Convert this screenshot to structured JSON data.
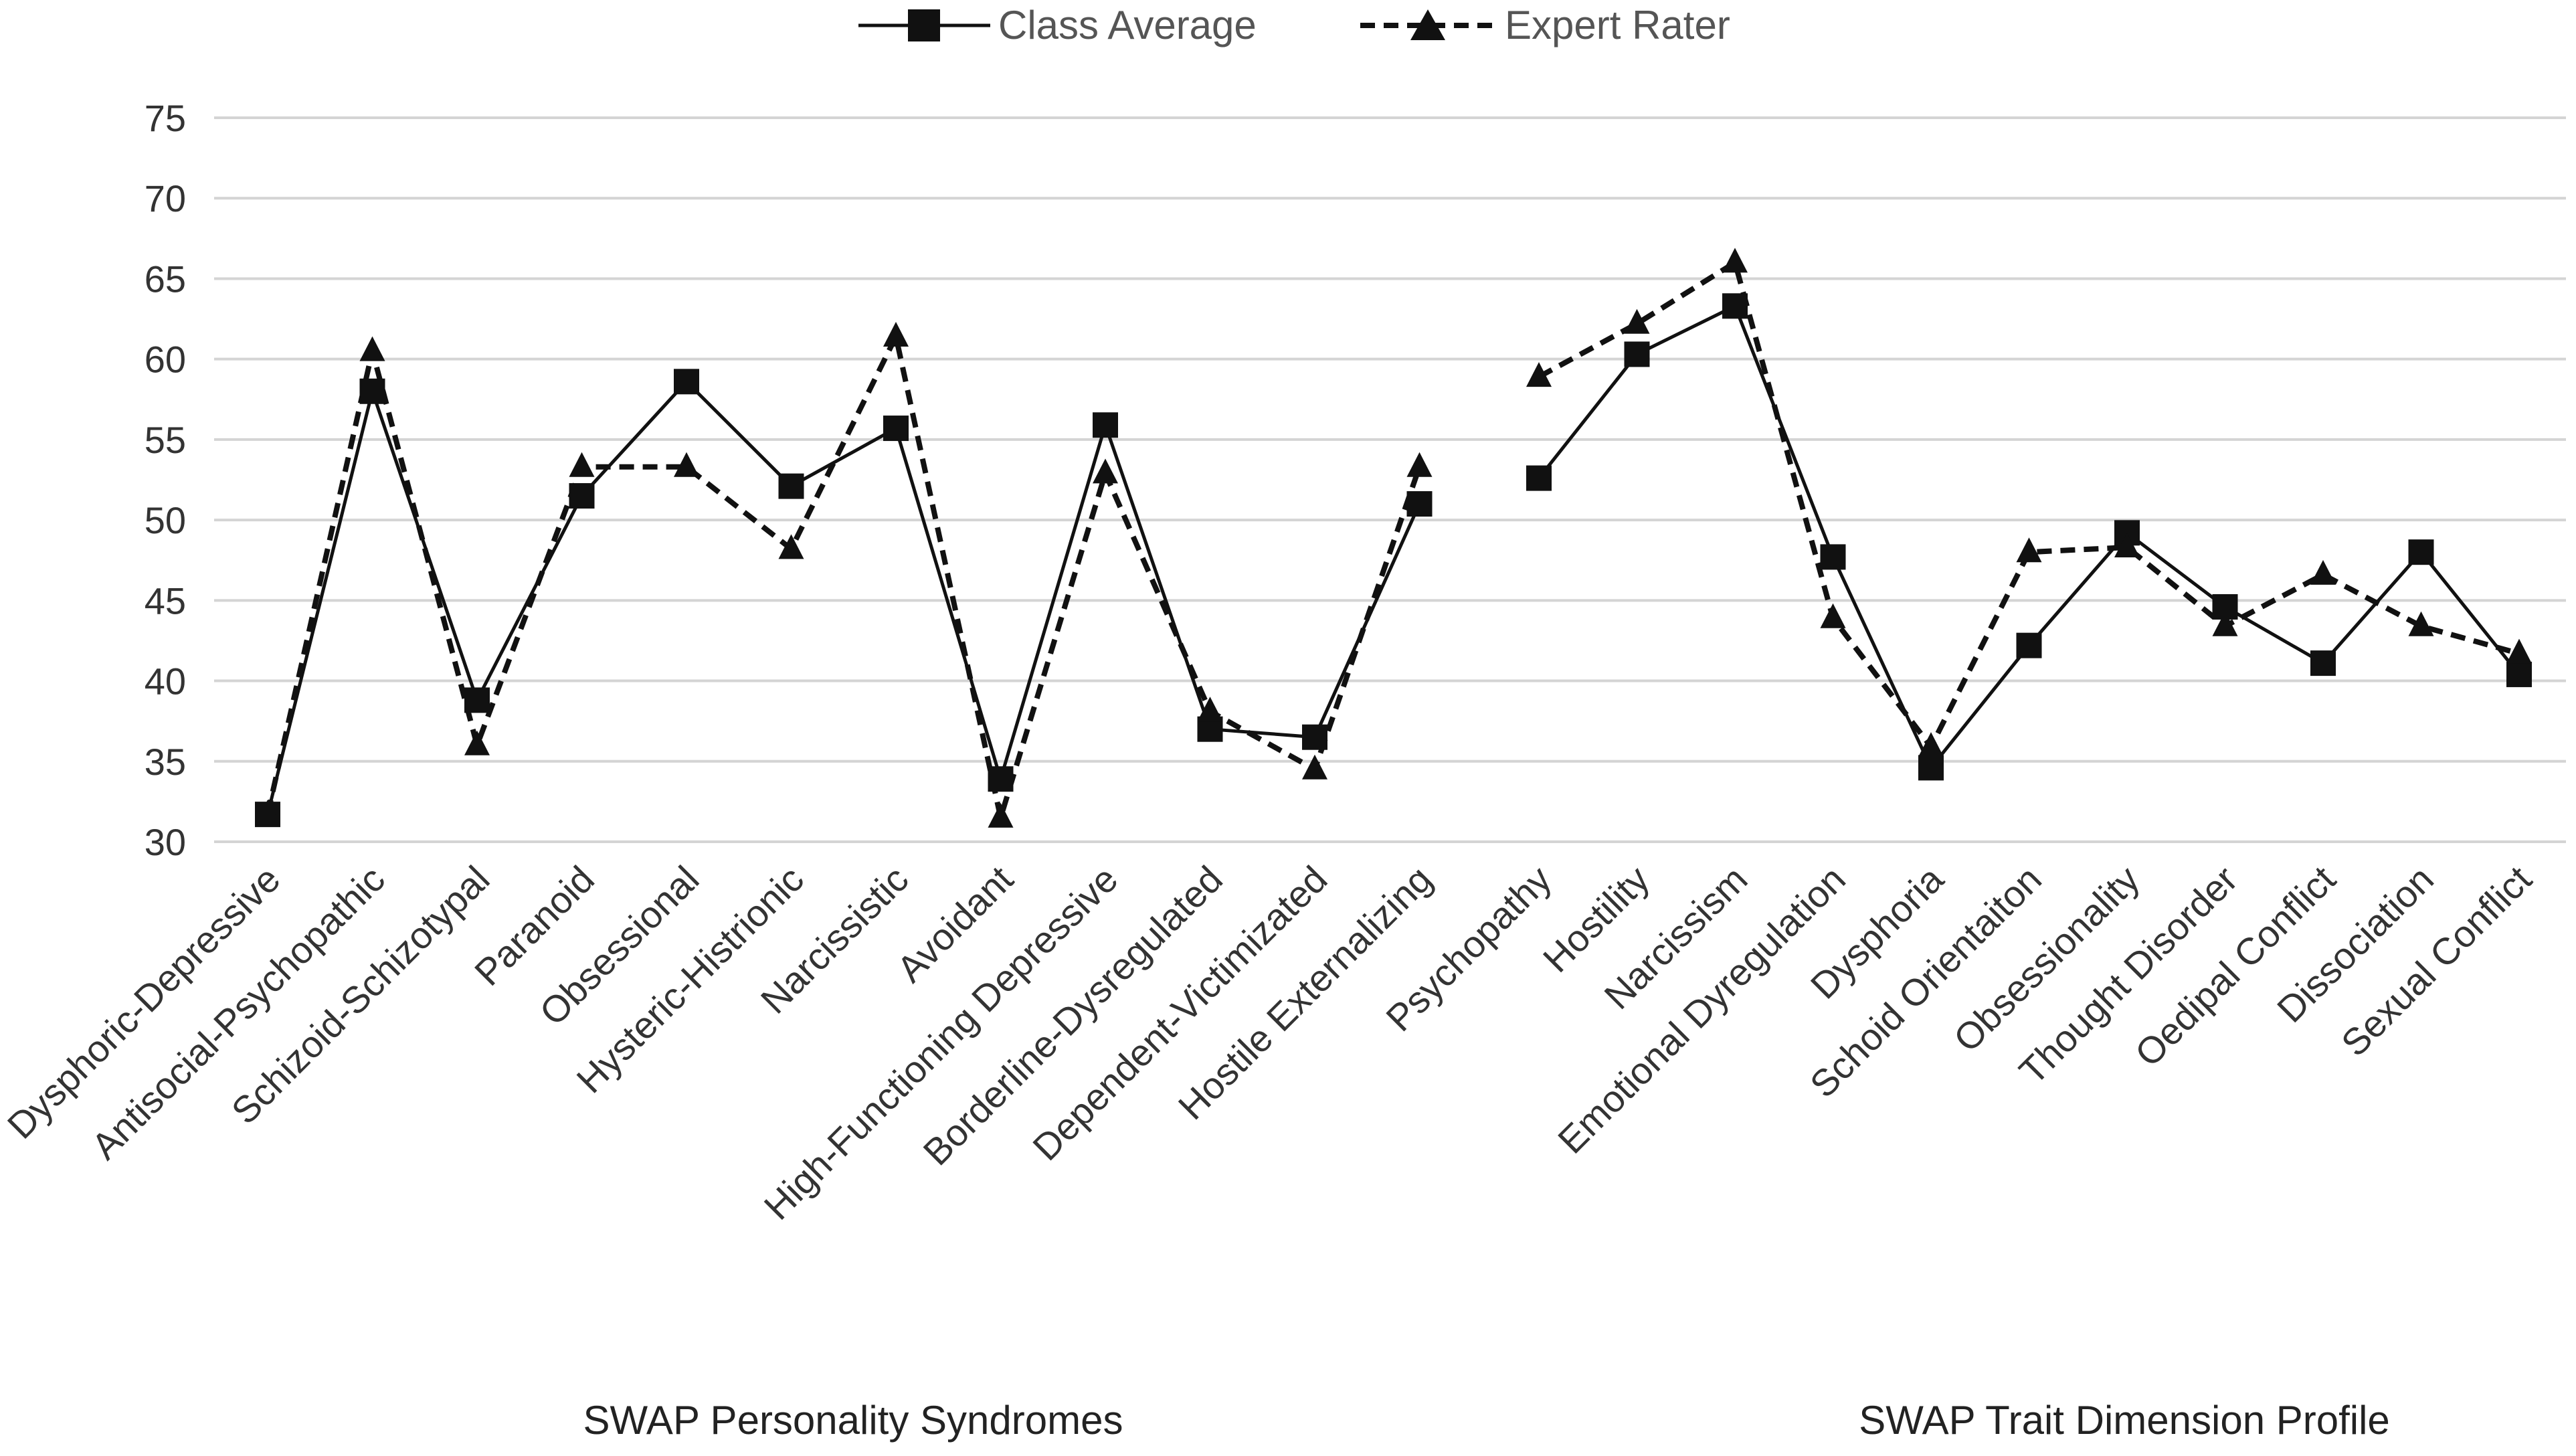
{
  "chart_data": {
    "type": "line",
    "title": "",
    "ylim": [
      30,
      75
    ],
    "yticks": [
      30,
      35,
      40,
      45,
      50,
      55,
      60,
      65,
      70,
      75
    ],
    "grid": true,
    "legend": {
      "position": "top-center",
      "entries": [
        "Class Average",
        "Expert Rater"
      ]
    },
    "groups": [
      {
        "label": "SWAP Personality Syndromes",
        "categories": [
          "Dysphoric-Depressive",
          "Antisocial-Psychopathic",
          "Schizoid-Schizotypal",
          "Paranoid",
          "Obsessional",
          "Hysteric-Histrionic",
          "Narcissistic",
          "Avoidant",
          "High-Functioning Depressive",
          "Borderline-Dysregulated",
          "Dependent-Victimizated",
          "Hostile Externalizing"
        ],
        "series": [
          {
            "name": "Class Average",
            "marker": "square",
            "dash": "solid",
            "values": [
              31.7,
              58.0,
              38.8,
              51.5,
              58.6,
              52.1,
              55.7,
              33.9,
              55.9,
              37.0,
              36.5,
              51.0
            ]
          },
          {
            "name": "Expert Rater",
            "marker": "triangle",
            "dash": "dashed",
            "values": [
              31.7,
              60.5,
              36.0,
              53.3,
              53.3,
              48.2,
              61.4,
              31.5,
              52.9,
              38.1,
              34.5,
              53.3
            ]
          }
        ]
      },
      {
        "label": "SWAP Trait Dimension Profile",
        "categories": [
          "Psychopathy",
          "Hostility",
          "Narcissism",
          "Emotional Dyregulation",
          "Dysphoria",
          "Schoid Orientaiton",
          "Obsessionality",
          "Thought Disorder",
          "Oedipal Conflict",
          "Dissociation",
          "Sexual Conflict"
        ],
        "series": [
          {
            "name": "Class Average",
            "marker": "square",
            "dash": "solid",
            "values": [
              52.6,
              60.3,
              63.3,
              47.7,
              34.6,
              42.2,
              49.2,
              44.6,
              41.1,
              48.0,
              40.4
            ]
          },
          {
            "name": "Expert Rater",
            "marker": "triangle",
            "dash": "dashed",
            "values": [
              58.9,
              62.2,
              66.0,
              43.9,
              35.9,
              48.0,
              48.3,
              43.4,
              46.6,
              43.4,
              41.7
            ]
          }
        ]
      }
    ]
  }
}
